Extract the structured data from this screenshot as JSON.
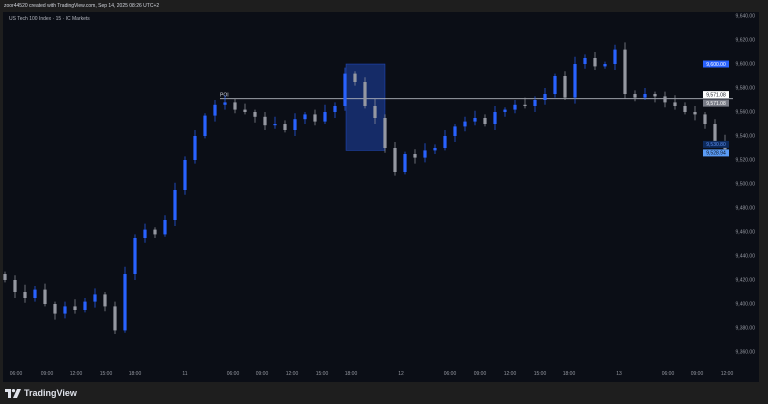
{
  "header": {
    "caption": "zoor44520 created with TradingView.com, Sep 14, 2025 08:26 UTC+2"
  },
  "chart_header": {
    "symbol": "US Tech 100 Index · 15 · IC Markets"
  },
  "footer": {
    "brand": "TradingView",
    "logo_icon": "tradingview-logo-icon"
  },
  "colors": {
    "up": "#2962ff",
    "down": "#9598a1",
    "background": "#0b0e16",
    "zone": "#2962ff"
  },
  "chart_data": {
    "type": "candlestick",
    "ylim": [
      9345,
      9650
    ],
    "y_ticks": [
      "9,640.00",
      "9,620.00",
      "9,600.00",
      "9,580.00",
      "9,560.00",
      "9,540.00",
      "9,520.00",
      "9,500.00",
      "9,480.00",
      "9,460.00",
      "9,440.00",
      "9,420.00",
      "9,400.00",
      "9,380.00",
      "9,360.00"
    ],
    "y_tick_values": [
      9640,
      9620,
      9600,
      9580,
      9560,
      9540,
      9520,
      9500,
      9480,
      9460,
      9440,
      9420,
      9400,
      9380,
      9360
    ],
    "x_ticks": [
      {
        "label": "06:00",
        "index": 1.1
      },
      {
        "label": "09:00",
        "index": 4.2
      },
      {
        "label": "12:00",
        "index": 7.1
      },
      {
        "label": "15:00",
        "index": 10.1
      },
      {
        "label": "18:00",
        "index": 13
      },
      {
        "label": "11",
        "index": 18
      },
      {
        "label": "06:00",
        "index": 22.8
      },
      {
        "label": "09:00",
        "index": 25.7
      },
      {
        "label": "12:00",
        "index": 28.7
      },
      {
        "label": "15:00",
        "index": 31.7
      },
      {
        "label": "18:00",
        "index": 34.6
      },
      {
        "label": "12",
        "index": 39.6
      },
      {
        "label": "06:00",
        "index": 44.5
      },
      {
        "label": "09:00",
        "index": 47.5
      },
      {
        "label": "12:00",
        "index": 50.5
      },
      {
        "label": "15:00",
        "index": 53.5
      },
      {
        "label": "18:00",
        "index": 56.4
      },
      {
        "label": "13",
        "index": 61.4
      },
      {
        "label": "06:00",
        "index": 66.3
      },
      {
        "label": "09:00",
        "index": 69.2
      },
      {
        "label": "12:00",
        "index": 72.2
      }
    ],
    "first_open": 9425,
    "closes": [
      9420,
      9410,
      9405,
      9412,
      9400,
      9392,
      9398,
      9395,
      9402,
      9408,
      9398,
      9378,
      9425,
      9455,
      9462,
      9458,
      9470,
      9495,
      9520,
      9540,
      9557,
      9566,
      9568,
      9562,
      9560,
      9556,
      9549,
      9550,
      9545,
      9554,
      9558,
      9552,
      9560,
      9565,
      9592,
      9585,
      9565,
      9555,
      9530,
      9510,
      9525,
      9522,
      9528,
      9530,
      9540,
      9548,
      9552,
      9555,
      9550,
      9560,
      9562,
      9566,
      9565,
      9570,
      9575,
      9590,
      9572,
      9600,
      9605,
      9598,
      9600,
      9612,
      9575,
      9572,
      9575,
      9573,
      9568,
      9565,
      9560,
      9558,
      9550,
      9535,
      9529
    ],
    "horizontal_line": {
      "price": 9571.08,
      "label": "POI",
      "start_index": 21.5
    },
    "zone": {
      "start_index": 34.1,
      "end_index": 38,
      "top": 9600,
      "bottom": 9528
    },
    "price_tags": [
      {
        "text": "9,600.00",
        "price": 9600,
        "bg": "#2962ff",
        "fg": "#ffffff"
      },
      {
        "text": "9,571.08",
        "price": 9574.5,
        "bg": "#ffffff",
        "fg": "#131722"
      },
      {
        "text": "9,571.08",
        "price": 9569,
        "bg": "#787b86",
        "fg": "#ffffff"
      },
      {
        "text": "9,530.80",
        "price": 9533,
        "bg": "#0d2a5c",
        "fg": "#5b8def"
      },
      {
        "text": "9,528.94",
        "price": 9526,
        "bg": "#5b9cf6",
        "fg": "#0b0e16"
      }
    ]
  }
}
